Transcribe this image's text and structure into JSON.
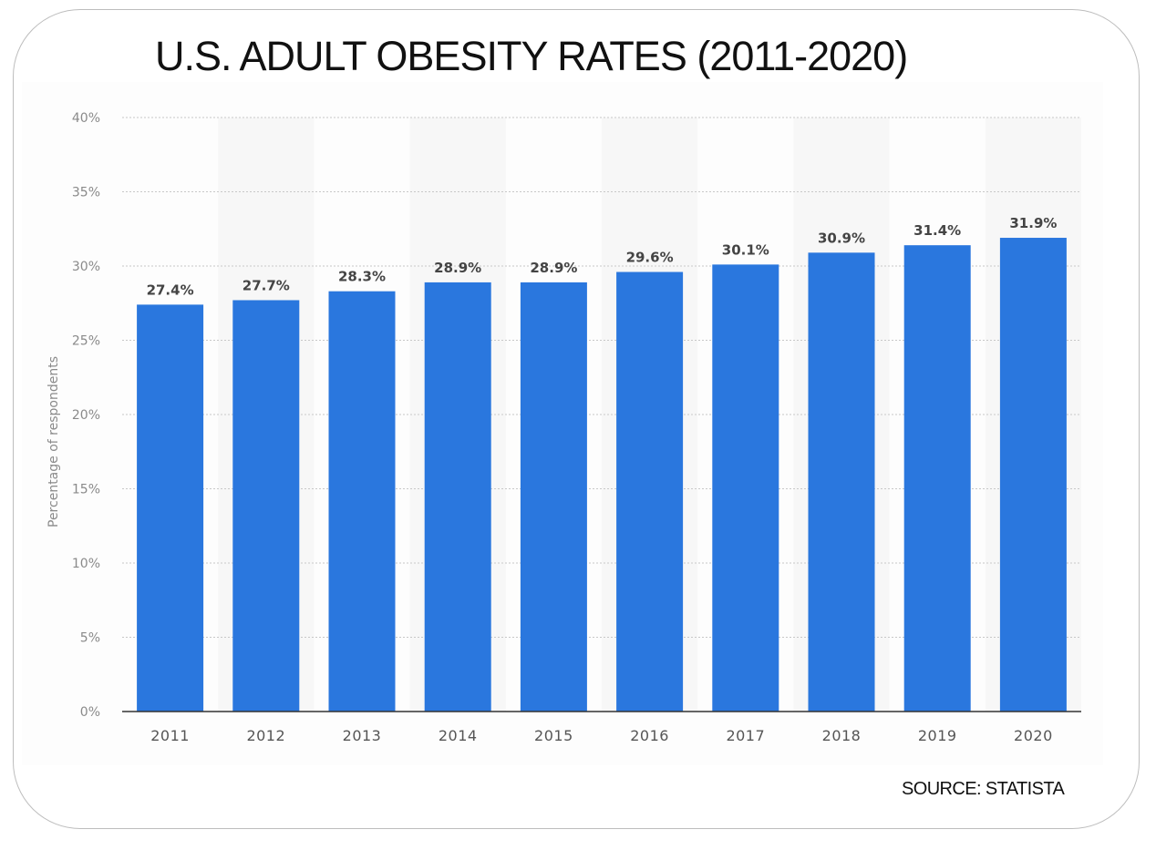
{
  "header": {
    "title": "U.S. ADULT OBESITY RATES (2011-2020)"
  },
  "footer": {
    "source": "SOURCE: STATISTA"
  },
  "colors": {
    "bar": "#2a77de",
    "grid": "#c8c8c8",
    "axis": "#333333",
    "band": "#f7f7f7"
  },
  "chart_data": {
    "type": "bar",
    "title": "U.S. ADULT OBESITY RATES (2011-2020)",
    "xlabel": "",
    "ylabel": "Percentage of respondents",
    "categories": [
      "2011",
      "2012",
      "2013",
      "2014",
      "2015",
      "2016",
      "2017",
      "2018",
      "2019",
      "2020"
    ],
    "values": [
      27.4,
      27.7,
      28.3,
      28.9,
      28.9,
      29.6,
      30.1,
      30.9,
      31.4,
      31.9
    ],
    "value_labels": [
      "27.4%",
      "27.7%",
      "28.3%",
      "28.9%",
      "28.9%",
      "29.6%",
      "30.1%",
      "30.9%",
      "31.4%",
      "31.9%"
    ],
    "ylim": [
      0,
      40
    ],
    "yticks": [
      0,
      5,
      10,
      15,
      20,
      25,
      30,
      35,
      40
    ],
    "ytick_labels": [
      "0%",
      "5%",
      "10%",
      "15%",
      "20%",
      "25%",
      "30%",
      "35%",
      "40%"
    ],
    "grid": true,
    "legend": "none"
  }
}
